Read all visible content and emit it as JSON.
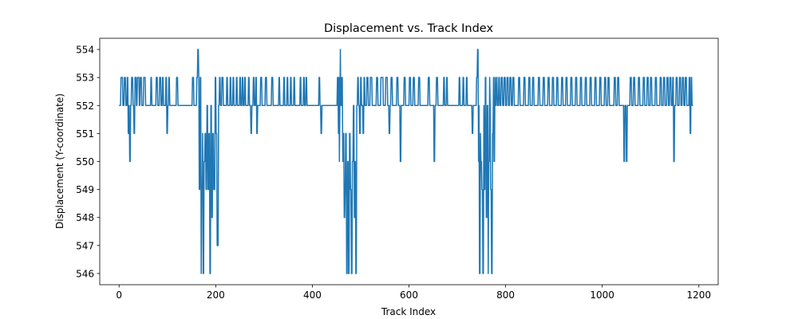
{
  "chart_data": {
    "type": "line",
    "title": "Displacement vs. Track Index",
    "xlabel": "Track Index",
    "ylabel": "Displacement (Y-coordinate)",
    "xlim": [
      -40,
      1240
    ],
    "ylim": [
      545.6,
      554.4
    ],
    "xticks": [
      0,
      200,
      400,
      600,
      800,
      1000,
      1200
    ],
    "yticks": [
      546,
      547,
      548,
      549,
      550,
      551,
      552,
      553,
      554
    ],
    "grid": false,
    "legend": "none",
    "series": [
      {
        "color": "#1f77b4",
        "baseline": 552,
        "x_range": [
          0,
          1188
        ],
        "deviations": [
          [
            4,
            553
          ],
          [
            8,
            552
          ],
          [
            11,
            553
          ],
          [
            14,
            552
          ],
          [
            17,
            553
          ],
          [
            19,
            551
          ],
          [
            21,
            552
          ],
          [
            22,
            550
          ],
          [
            24,
            552
          ],
          [
            26,
            553
          ],
          [
            29,
            552
          ],
          [
            31,
            551
          ],
          [
            33,
            553
          ],
          [
            36,
            552
          ],
          [
            38,
            553
          ],
          [
            42,
            552
          ],
          [
            44,
            553
          ],
          [
            47,
            552
          ],
          [
            51,
            553
          ],
          [
            55,
            552
          ],
          [
            66,
            553
          ],
          [
            68,
            552
          ],
          [
            77,
            553
          ],
          [
            80,
            552
          ],
          [
            84,
            553
          ],
          [
            87,
            552
          ],
          [
            90,
            553
          ],
          [
            92,
            552
          ],
          [
            97,
            553
          ],
          [
            99,
            551
          ],
          [
            101,
            552
          ],
          [
            103,
            553
          ],
          [
            105,
            552
          ],
          [
            119,
            553
          ],
          [
            122,
            552
          ],
          [
            152,
            553
          ],
          [
            155,
            552
          ],
          [
            161,
            553
          ],
          [
            163,
            554
          ],
          [
            165,
            553
          ],
          [
            166,
            549
          ],
          [
            168,
            553
          ],
          [
            170,
            546
          ],
          [
            171,
            549
          ],
          [
            173,
            551
          ],
          [
            174,
            546
          ],
          [
            176,
            550
          ],
          [
            178,
            551
          ],
          [
            180,
            549
          ],
          [
            182,
            552
          ],
          [
            184,
            549
          ],
          [
            186,
            551
          ],
          [
            188,
            546
          ],
          [
            190,
            552
          ],
          [
            192,
            548
          ],
          [
            194,
            551
          ],
          [
            196,
            549
          ],
          [
            199,
            553
          ],
          [
            201,
            551
          ],
          [
            203,
            547
          ],
          [
            206,
            552
          ],
          [
            208,
            553
          ],
          [
            210,
            552
          ],
          [
            213,
            553
          ],
          [
            216,
            552
          ],
          [
            223,
            553
          ],
          [
            225,
            552
          ],
          [
            230,
            553
          ],
          [
            232,
            552
          ],
          [
            236,
            553
          ],
          [
            238,
            552
          ],
          [
            243,
            553
          ],
          [
            245,
            552
          ],
          [
            250,
            553
          ],
          [
            252,
            552
          ],
          [
            255,
            553
          ],
          [
            257,
            552
          ],
          [
            260,
            553
          ],
          [
            262,
            552
          ],
          [
            268,
            553
          ],
          [
            270,
            552
          ],
          [
            273,
            551
          ],
          [
            275,
            552
          ],
          [
            278,
            553
          ],
          [
            280,
            552
          ],
          [
            283,
            553
          ],
          [
            285,
            551
          ],
          [
            287,
            552
          ],
          [
            293,
            553
          ],
          [
            296,
            552
          ],
          [
            303,
            553
          ],
          [
            306,
            552
          ],
          [
            316,
            553
          ],
          [
            319,
            552
          ],
          [
            331,
            553
          ],
          [
            333,
            552
          ],
          [
            341,
            553
          ],
          [
            343,
            552
          ],
          [
            348,
            553
          ],
          [
            350,
            552
          ],
          [
            355,
            553
          ],
          [
            357,
            552
          ],
          [
            362,
            553
          ],
          [
            364,
            552
          ],
          [
            375,
            553
          ],
          [
            377,
            552
          ],
          [
            382,
            553
          ],
          [
            384,
            552
          ],
          [
            387,
            553
          ],
          [
            389,
            552
          ],
          [
            414,
            553
          ],
          [
            416,
            552
          ],
          [
            418,
            551
          ],
          [
            420,
            552
          ],
          [
            452,
            553
          ],
          [
            454,
            551
          ],
          [
            455,
            553
          ],
          [
            456,
            550
          ],
          [
            457,
            552
          ],
          [
            458,
            554
          ],
          [
            459,
            552
          ],
          [
            461,
            553
          ],
          [
            463,
            550
          ],
          [
            464,
            551
          ],
          [
            466,
            548
          ],
          [
            468,
            549
          ],
          [
            469,
            551
          ],
          [
            471,
            546
          ],
          [
            473,
            550
          ],
          [
            475,
            546
          ],
          [
            477,
            551
          ],
          [
            479,
            549
          ],
          [
            481,
            546
          ],
          [
            483,
            550
          ],
          [
            485,
            552
          ],
          [
            487,
            548
          ],
          [
            489,
            550
          ],
          [
            490,
            546
          ],
          [
            492,
            552
          ],
          [
            494,
            553
          ],
          [
            496,
            552
          ],
          [
            498,
            551
          ],
          [
            500,
            553
          ],
          [
            502,
            552
          ],
          [
            505,
            551
          ],
          [
            507,
            553
          ],
          [
            509,
            552
          ],
          [
            513,
            553
          ],
          [
            516,
            552
          ],
          [
            520,
            553
          ],
          [
            524,
            552
          ],
          [
            533,
            553
          ],
          [
            536,
            552
          ],
          [
            542,
            553
          ],
          [
            547,
            552
          ],
          [
            552,
            553
          ],
          [
            556,
            552
          ],
          [
            559,
            551
          ],
          [
            561,
            552
          ],
          [
            563,
            553
          ],
          [
            566,
            552
          ],
          [
            575,
            553
          ],
          [
            578,
            552
          ],
          [
            582,
            550
          ],
          [
            584,
            552
          ],
          [
            590,
            553
          ],
          [
            593,
            552
          ],
          [
            601,
            553
          ],
          [
            604,
            552
          ],
          [
            609,
            553
          ],
          [
            612,
            552
          ],
          [
            620,
            553
          ],
          [
            623,
            552
          ],
          [
            640,
            553
          ],
          [
            643,
            552
          ],
          [
            652,
            550
          ],
          [
            654,
            552
          ],
          [
            657,
            553
          ],
          [
            660,
            552
          ],
          [
            672,
            553
          ],
          [
            674,
            552
          ],
          [
            678,
            553
          ],
          [
            680,
            552
          ],
          [
            704,
            553
          ],
          [
            706,
            552
          ],
          [
            712,
            553
          ],
          [
            714,
            552
          ],
          [
            719,
            553
          ],
          [
            721,
            552
          ],
          [
            731,
            551
          ],
          [
            733,
            552
          ],
          [
            740,
            553
          ],
          [
            742,
            554
          ],
          [
            744,
            550
          ],
          [
            745,
            552
          ],
          [
            746,
            546
          ],
          [
            748,
            551
          ],
          [
            749,
            550
          ],
          [
            751,
            549
          ],
          [
            753,
            546
          ],
          [
            755,
            552
          ],
          [
            756,
            549
          ],
          [
            758,
            553
          ],
          [
            760,
            548
          ],
          [
            762,
            552
          ],
          [
            764,
            546
          ],
          [
            765,
            550
          ],
          [
            767,
            553
          ],
          [
            768,
            552
          ],
          [
            769,
            549
          ],
          [
            771,
            546
          ],
          [
            773,
            551
          ],
          [
            775,
            553
          ],
          [
            776,
            550
          ],
          [
            778,
            553
          ],
          [
            779,
            552
          ],
          [
            781,
            553
          ],
          [
            783,
            552
          ],
          [
            786,
            553
          ],
          [
            788,
            552
          ],
          [
            791,
            553
          ],
          [
            794,
            552
          ],
          [
            797,
            553
          ],
          [
            800,
            552
          ],
          [
            803,
            553
          ],
          [
            806,
            552
          ],
          [
            809,
            553
          ],
          [
            812,
            552
          ],
          [
            815,
            553
          ],
          [
            818,
            552
          ],
          [
            827,
            553
          ],
          [
            830,
            552
          ],
          [
            838,
            553
          ],
          [
            841,
            552
          ],
          [
            848,
            553
          ],
          [
            851,
            552
          ],
          [
            856,
            553
          ],
          [
            859,
            552
          ],
          [
            868,
            553
          ],
          [
            871,
            552
          ],
          [
            878,
            553
          ],
          [
            881,
            552
          ],
          [
            888,
            553
          ],
          [
            891,
            552
          ],
          [
            897,
            553
          ],
          [
            900,
            552
          ],
          [
            906,
            553
          ],
          [
            909,
            552
          ],
          [
            916,
            553
          ],
          [
            919,
            552
          ],
          [
            925,
            553
          ],
          [
            928,
            552
          ],
          [
            935,
            553
          ],
          [
            938,
            552
          ],
          [
            945,
            553
          ],
          [
            948,
            552
          ],
          [
            955,
            553
          ],
          [
            958,
            552
          ],
          [
            965,
            553
          ],
          [
            968,
            552
          ],
          [
            975,
            553
          ],
          [
            978,
            552
          ],
          [
            985,
            553
          ],
          [
            988,
            552
          ],
          [
            995,
            553
          ],
          [
            998,
            552
          ],
          [
            1005,
            553
          ],
          [
            1008,
            552
          ],
          [
            1012,
            553
          ],
          [
            1015,
            552
          ],
          [
            1025,
            553
          ],
          [
            1028,
            552
          ],
          [
            1032,
            553
          ],
          [
            1035,
            552
          ],
          [
            1045,
            550
          ],
          [
            1047,
            552
          ],
          [
            1050,
            550
          ],
          [
            1052,
            552
          ],
          [
            1058,
            553
          ],
          [
            1061,
            552
          ],
          [
            1065,
            553
          ],
          [
            1068,
            552
          ],
          [
            1075,
            553
          ],
          [
            1078,
            552
          ],
          [
            1085,
            553
          ],
          [
            1088,
            552
          ],
          [
            1093,
            553
          ],
          [
            1096,
            552
          ],
          [
            1100,
            553
          ],
          [
            1103,
            552
          ],
          [
            1110,
            553
          ],
          [
            1113,
            552
          ],
          [
            1120,
            553
          ],
          [
            1123,
            552
          ],
          [
            1127,
            553
          ],
          [
            1130,
            552
          ],
          [
            1134,
            553
          ],
          [
            1137,
            552
          ],
          [
            1140,
            553
          ],
          [
            1143,
            552
          ],
          [
            1146,
            553
          ],
          [
            1148,
            550
          ],
          [
            1150,
            552
          ],
          [
            1153,
            553
          ],
          [
            1156,
            552
          ],
          [
            1160,
            553
          ],
          [
            1163,
            552
          ],
          [
            1166,
            553
          ],
          [
            1169,
            552
          ],
          [
            1172,
            553
          ],
          [
            1175,
            552
          ],
          [
            1180,
            553
          ],
          [
            1182,
            551
          ],
          [
            1184,
            553
          ],
          [
            1186,
            552
          ]
        ]
      }
    ]
  }
}
